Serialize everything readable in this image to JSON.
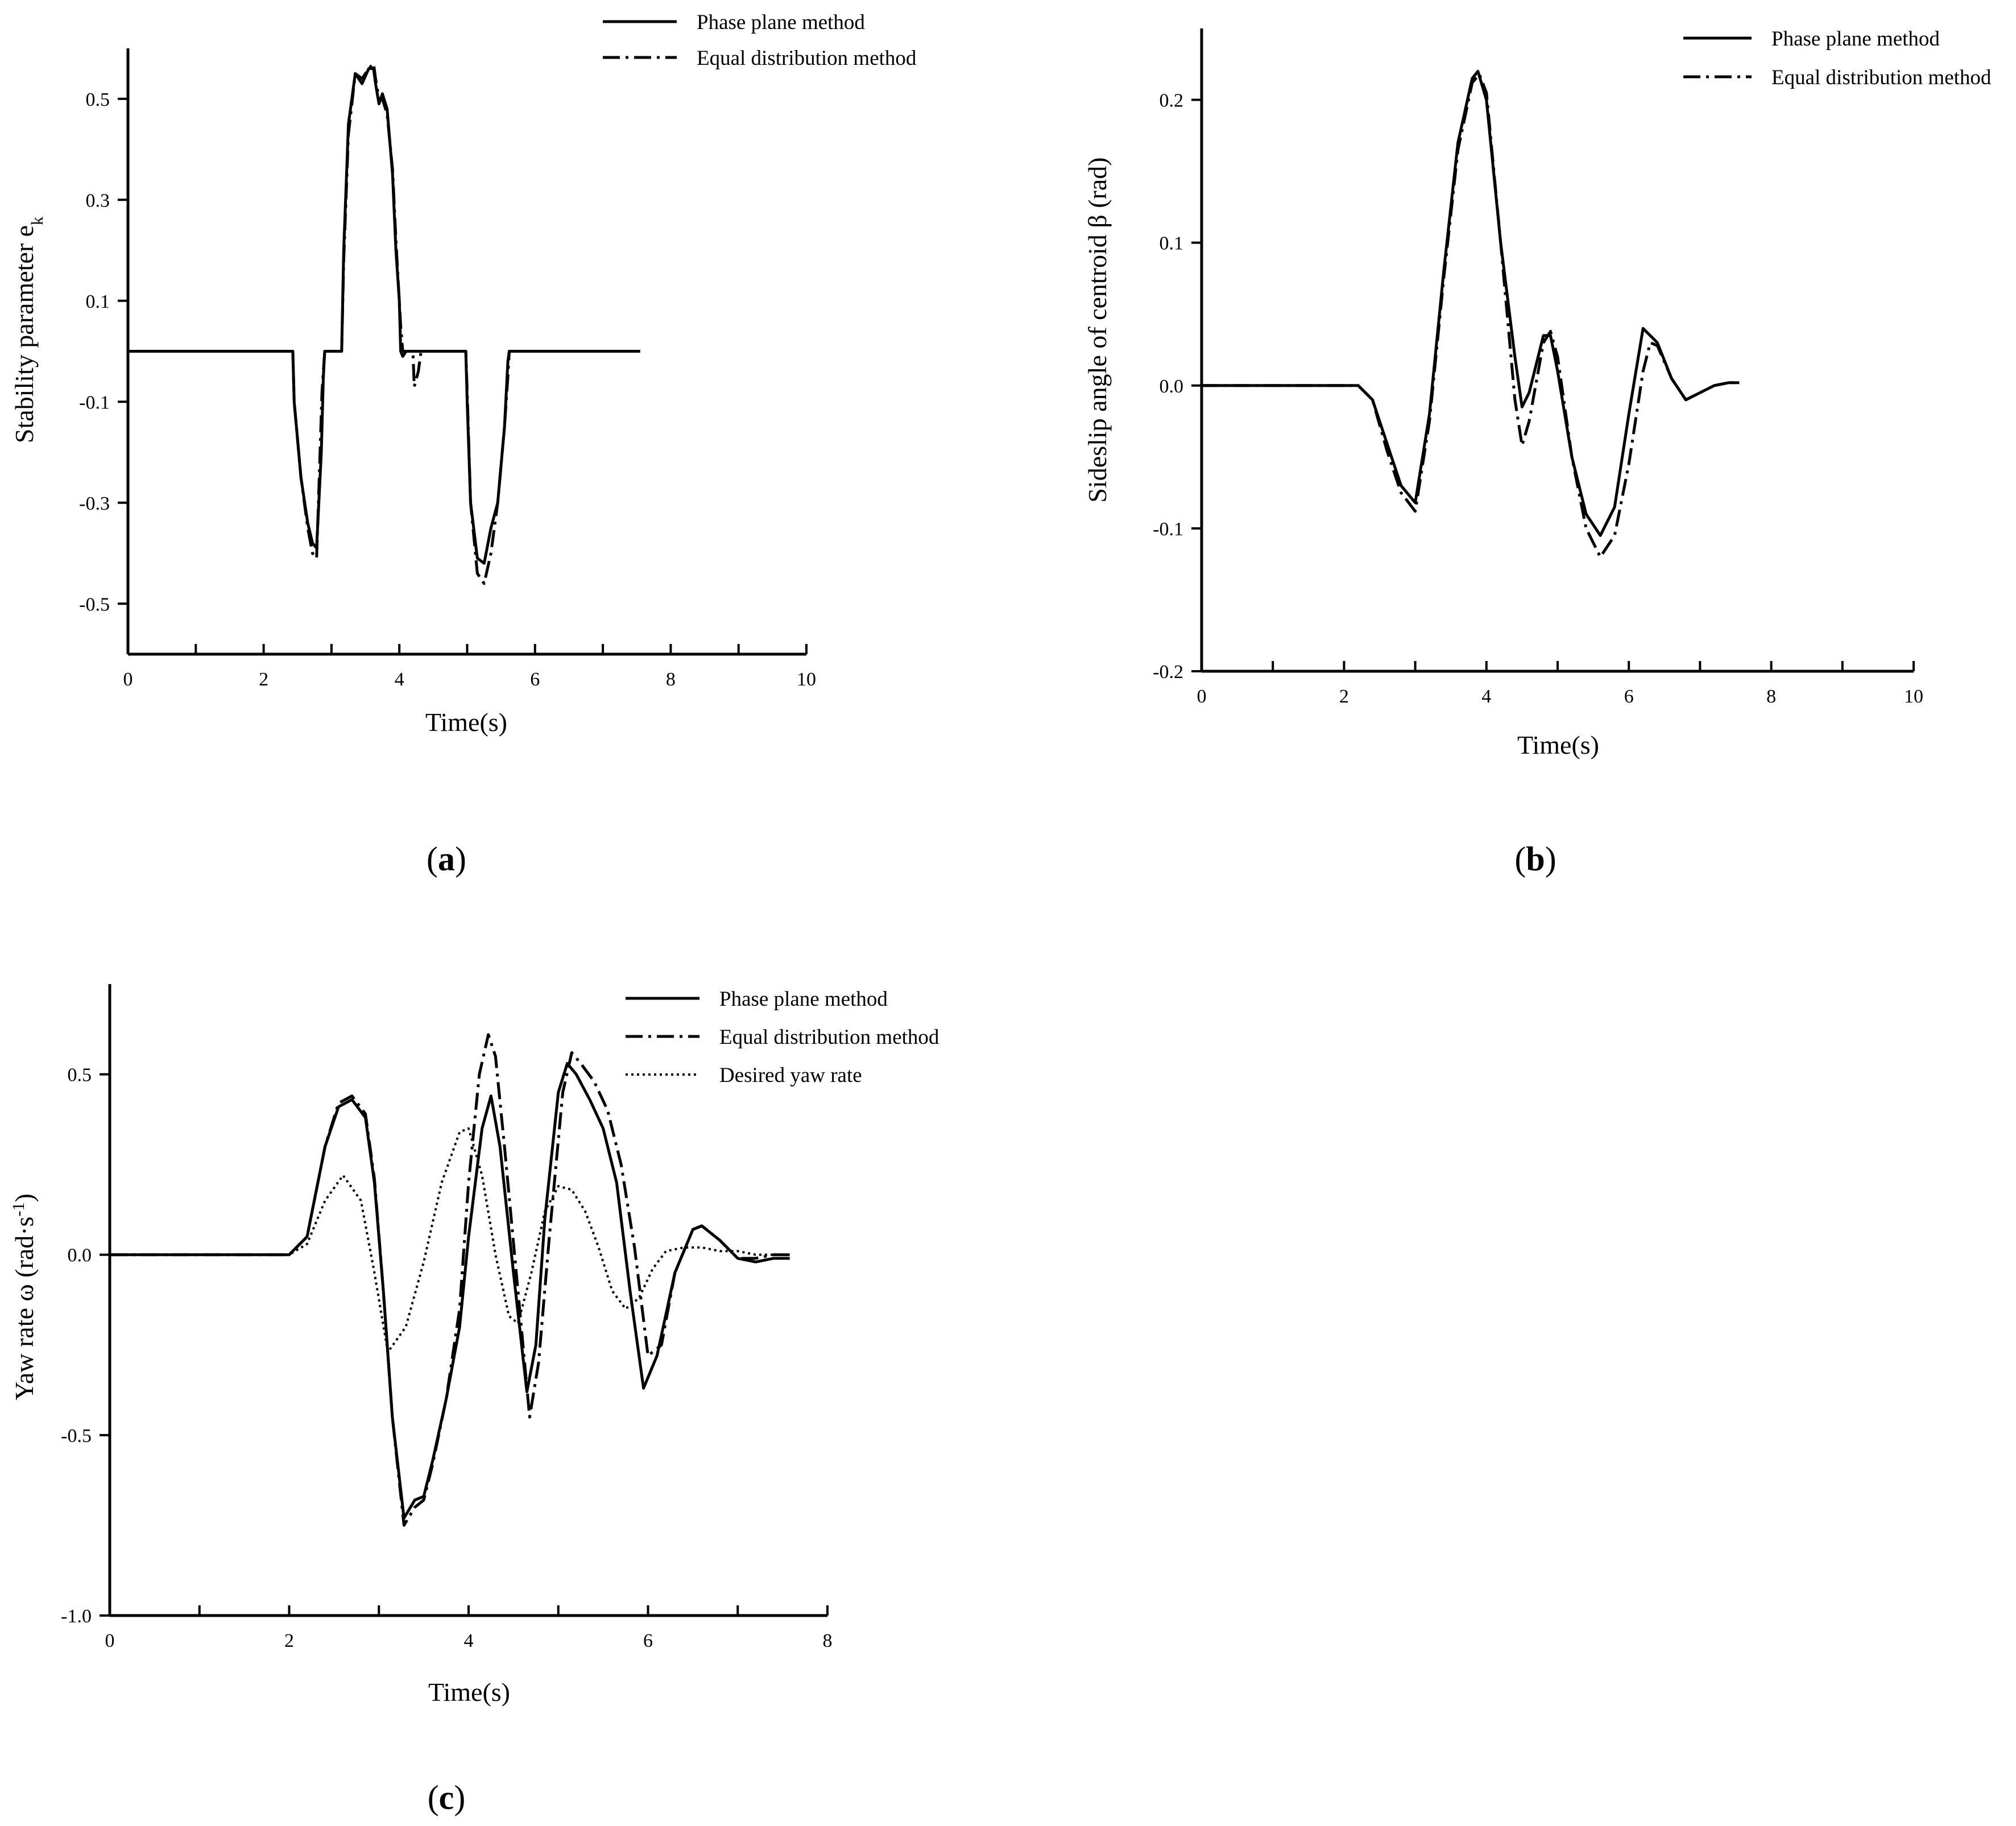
{
  "charts": [
    {
      "panel_label": "a",
      "legend": [
        "Phase plane method",
        "Equal distribution method"
      ]
    },
    {
      "panel_label": "b",
      "legend": [
        "Phase plane method",
        "Equal distribution method"
      ]
    },
    {
      "panel_label": "c",
      "legend": [
        "Phase plane method",
        "Equal distribution method",
        "Desired yaw rate"
      ]
    }
  ],
  "chart_data": [
    {
      "type": "line",
      "title": "",
      "xlabel": "Time(s)",
      "ylabel": "Stability parameter e_k",
      "ylabel_main": "Stability parameter e",
      "ylabel_sub": "k",
      "xlim": [
        0,
        10
      ],
      "ylim": [
        -0.6,
        0.6
      ],
      "xticks": [
        0,
        2,
        4,
        6,
        8,
        10
      ],
      "xtick_labels": [
        "0",
        "2",
        "4",
        "6",
        "8",
        "10"
      ],
      "yticks": [
        0.5,
        0.3,
        0.1,
        -0.1,
        -0.3,
        -0.5
      ],
      "ytick_labels": [
        "0.5",
        "0.3",
        "0.1",
        "-0.1",
        "-0.3",
        "-0.5"
      ],
      "legend_position": "top-right",
      "series": [
        {
          "name": "Phase plane method",
          "style": "solid",
          "x": [
            0,
            2.43,
            2.45,
            2.55,
            2.65,
            2.72,
            2.78,
            2.85,
            2.88,
            2.9,
            3.15,
            3.18,
            3.25,
            3.35,
            3.45,
            3.55,
            3.62,
            3.65,
            3.7,
            3.75,
            3.82,
            3.9,
            3.95,
            4.0,
            4.02,
            4.05,
            4.1,
            4.2,
            4.5,
            4.98,
            5.0,
            5.05,
            5.15,
            5.25,
            5.35,
            5.45,
            5.55,
            5.6,
            5.62,
            7.55
          ],
          "y": [
            0,
            0,
            -0.1,
            -0.25,
            -0.34,
            -0.38,
            -0.39,
            -0.2,
            -0.05,
            0,
            0,
            0.2,
            0.45,
            0.55,
            0.53,
            0.56,
            0.56,
            0.53,
            0.49,
            0.51,
            0.48,
            0.35,
            0.2,
            0.1,
            0,
            -0.01,
            0,
            0,
            0,
            0,
            -0.1,
            -0.3,
            -0.41,
            -0.42,
            -0.35,
            -0.3,
            -0.15,
            -0.02,
            0,
            0
          ]
        },
        {
          "name": "Equal distribution method",
          "style": "dashdot",
          "x": [
            0,
            2.43,
            2.45,
            2.55,
            2.65,
            2.72,
            2.78,
            2.82,
            2.86,
            2.9,
            3.15,
            3.18,
            3.25,
            3.35,
            3.45,
            3.55,
            3.62,
            3.65,
            3.7,
            3.75,
            3.82,
            3.9,
            3.95,
            4.02,
            4.05,
            4.2,
            4.22,
            4.28,
            4.32,
            4.5,
            4.98,
            5.0,
            5.05,
            5.15,
            5.25,
            5.35,
            5.45,
            5.55,
            5.6,
            5.62,
            7.55
          ],
          "y": [
            0,
            0,
            -0.1,
            -0.25,
            -0.35,
            -0.4,
            -0.41,
            -0.25,
            -0.08,
            0,
            0,
            0.18,
            0.43,
            0.55,
            0.54,
            0.56,
            0.57,
            0.54,
            0.5,
            0.5,
            0.47,
            0.36,
            0.22,
            0.05,
            0,
            0,
            -0.07,
            -0.04,
            0,
            0,
            0,
            -0.08,
            -0.3,
            -0.44,
            -0.46,
            -0.4,
            -0.3,
            -0.15,
            -0.05,
            0,
            0
          ]
        }
      ]
    },
    {
      "type": "line",
      "title": "",
      "xlabel": "Time(s)",
      "ylabel": "Sideslip angle of centroid β (rad)",
      "xlim": [
        0,
        10
      ],
      "ylim": [
        -0.2,
        0.25
      ],
      "xticks": [
        0,
        2,
        4,
        6,
        8,
        10
      ],
      "xtick_labels": [
        "0",
        "2",
        "4",
        "6",
        "8",
        "10"
      ],
      "yticks": [
        0.2,
        0.1,
        0.0,
        -0.1,
        -0.2
      ],
      "ytick_labels": [
        "0.2",
        "0.1",
        "0.0",
        "-0.1",
        "-0.2"
      ],
      "legend_position": "top-right",
      "series": [
        {
          "name": "Phase plane method",
          "style": "solid",
          "x": [
            0,
            2.2,
            2.4,
            2.6,
            2.8,
            3.0,
            3.2,
            3.4,
            3.6,
            3.8,
            3.88,
            4.0,
            4.2,
            4.4,
            4.5,
            4.6,
            4.8,
            4.9,
            5.0,
            5.2,
            5.4,
            5.6,
            5.8,
            6.0,
            6.2,
            6.4,
            6.6,
            6.8,
            7.0,
            7.2,
            7.4,
            7.55
          ],
          "y": [
            0,
            0,
            -0.01,
            -0.04,
            -0.07,
            -0.082,
            -0.02,
            0.08,
            0.17,
            0.215,
            0.22,
            0.2,
            0.1,
            0.02,
            -0.015,
            -0.005,
            0.035,
            0.035,
            0.01,
            -0.05,
            -0.09,
            -0.105,
            -0.085,
            -0.02,
            0.04,
            0.03,
            0.005,
            -0.01,
            -0.005,
            0,
            0.002,
            0.002
          ]
        },
        {
          "name": "Equal distribution method",
          "style": "dashdot",
          "x": [
            0,
            2.2,
            2.4,
            2.6,
            2.8,
            3.0,
            3.2,
            3.4,
            3.6,
            3.8,
            3.9,
            4.0,
            4.2,
            4.4,
            4.5,
            4.6,
            4.8,
            4.9,
            5.0,
            5.2,
            5.4,
            5.6,
            5.8,
            6.0,
            6.2,
            6.3,
            6.4,
            6.6,
            6.8,
            7.0,
            7.2,
            7.4,
            7.55
          ],
          "y": [
            0,
            0,
            -0.01,
            -0.045,
            -0.075,
            -0.088,
            -0.025,
            0.075,
            0.165,
            0.212,
            0.218,
            0.205,
            0.1,
            -0.01,
            -0.042,
            -0.025,
            0.03,
            0.038,
            0.02,
            -0.05,
            -0.1,
            -0.12,
            -0.105,
            -0.055,
            0.01,
            0.03,
            0.028,
            0.005,
            -0.01,
            -0.005,
            0,
            0.002,
            0.002
          ]
        }
      ]
    },
    {
      "type": "line",
      "title": "",
      "xlabel": "Time(s)",
      "ylabel": "Yaw rate ω (rad·s⁻¹)",
      "ylabel_main": "Yaw rate ω (rad·s",
      "ylabel_sup": "-1",
      "ylabel_tail": ")",
      "xlim": [
        0,
        8
      ],
      "ylim": [
        -1.0,
        0.75
      ],
      "xticks": [
        0,
        2,
        4,
        6,
        8
      ],
      "xtick_labels": [
        "0",
        "2",
        "4",
        "6",
        "8"
      ],
      "yticks": [
        0.5,
        0.0,
        -0.5,
        -1.0
      ],
      "ytick_labels": [
        "0.5",
        "0.0",
        "-0.5",
        "-1.0"
      ],
      "legend_position": "top-right",
      "series": [
        {
          "name": "Phase plane method",
          "style": "solid",
          "x": [
            0,
            2.0,
            2.2,
            2.4,
            2.55,
            2.7,
            2.85,
            2.95,
            3.05,
            3.15,
            3.28,
            3.4,
            3.5,
            3.6,
            3.75,
            3.9,
            4.0,
            4.15,
            4.25,
            4.35,
            4.5,
            4.65,
            4.75,
            4.85,
            5.0,
            5.1,
            5.2,
            5.35,
            5.5,
            5.65,
            5.8,
            5.95,
            6.1,
            6.3,
            6.5,
            6.6,
            6.8,
            7.0,
            7.2,
            7.4,
            7.58
          ],
          "y": [
            0,
            0,
            0.05,
            0.3,
            0.41,
            0.43,
            0.38,
            0.2,
            -0.1,
            -0.45,
            -0.73,
            -0.68,
            -0.67,
            -0.57,
            -0.4,
            -0.2,
            0.05,
            0.35,
            0.44,
            0.3,
            -0.05,
            -0.38,
            -0.25,
            0.1,
            0.45,
            0.53,
            0.5,
            0.43,
            0.35,
            0.2,
            -0.1,
            -0.37,
            -0.28,
            -0.05,
            0.07,
            0.08,
            0.04,
            -0.01,
            -0.02,
            -0.01,
            -0.01
          ]
        },
        {
          "name": "Equal distribution method",
          "style": "dashdot",
          "x": [
            0,
            2.0,
            2.2,
            2.4,
            2.55,
            2.7,
            2.85,
            2.95,
            3.05,
            3.15,
            3.28,
            3.4,
            3.5,
            3.6,
            3.75,
            3.9,
            4.0,
            4.12,
            4.22,
            4.3,
            4.4,
            4.55,
            4.68,
            4.78,
            4.9,
            5.05,
            5.15,
            5.25,
            5.4,
            5.55,
            5.7,
            5.85,
            6.0,
            6.15,
            6.3,
            6.5,
            6.6,
            6.8,
            7.0,
            7.2,
            7.4,
            7.58
          ],
          "y": [
            0,
            0,
            0.05,
            0.3,
            0.42,
            0.44,
            0.39,
            0.21,
            -0.1,
            -0.45,
            -0.75,
            -0.7,
            -0.68,
            -0.58,
            -0.4,
            -0.15,
            0.2,
            0.5,
            0.61,
            0.55,
            0.3,
            -0.1,
            -0.45,
            -0.3,
            0.05,
            0.45,
            0.56,
            0.53,
            0.48,
            0.4,
            0.25,
            0.02,
            -0.28,
            -0.25,
            -0.05,
            0.07,
            0.08,
            0.04,
            -0.01,
            -0.01,
            0,
            0
          ]
        },
        {
          "name": "Desired yaw rate",
          "style": "dotted",
          "x": [
            0,
            2.0,
            2.2,
            2.4,
            2.6,
            2.8,
            2.95,
            3.1,
            3.3,
            3.5,
            3.7,
            3.9,
            4.0,
            4.15,
            4.3,
            4.45,
            4.55,
            4.7,
            4.85,
            5.0,
            5.15,
            5.3,
            5.45,
            5.6,
            5.75,
            5.9,
            6.05,
            6.2,
            6.4,
            6.6,
            6.8,
            7.0,
            7.2,
            7.4,
            7.58
          ],
          "y": [
            0,
            0,
            0.03,
            0.15,
            0.22,
            0.15,
            -0.05,
            -0.27,
            -0.2,
            -0.02,
            0.2,
            0.34,
            0.35,
            0.22,
            0.0,
            -0.17,
            -0.19,
            -0.05,
            0.12,
            0.19,
            0.18,
            0.12,
            0.02,
            -0.1,
            -0.15,
            -0.12,
            -0.04,
            0.01,
            0.02,
            0.02,
            0.01,
            0.01,
            0.0,
            0.0,
            0.0
          ]
        }
      ]
    }
  ]
}
